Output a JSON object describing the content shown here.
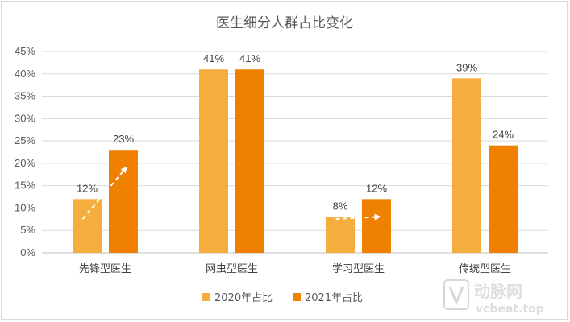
{
  "chart_data": {
    "type": "bar",
    "title": "医生细分人群占比变化",
    "categories": [
      "先锋型医生",
      "网虫型医生",
      "学习型医生",
      "传统型医生"
    ],
    "series": [
      {
        "name": "2020年占比",
        "values": [
          12,
          41,
          8,
          39
        ],
        "color": "#F5AE3E"
      },
      {
        "name": "2021年占比",
        "values": [
          23,
          41,
          12,
          24
        ],
        "color": "#F08100"
      }
    ],
    "data_labels": {
      "2020年占比": [
        "12%",
        "41%",
        "8%",
        "39%"
      ],
      "2021年占比": [
        "23%",
        "41%",
        "12%",
        "24%"
      ]
    },
    "ylim": [
      0,
      45
    ],
    "yticks": [
      "0%",
      "5%",
      "10%",
      "15%",
      "20%",
      "25%",
      "30%",
      "35%",
      "40%",
      "45%"
    ],
    "grid": true,
    "legend": "bottom",
    "trend_arrows": [
      "先锋型医生",
      "学习型医生"
    ]
  },
  "watermark": {
    "logo_text": "动脉网",
    "url_text": "vcbeat.top"
  }
}
